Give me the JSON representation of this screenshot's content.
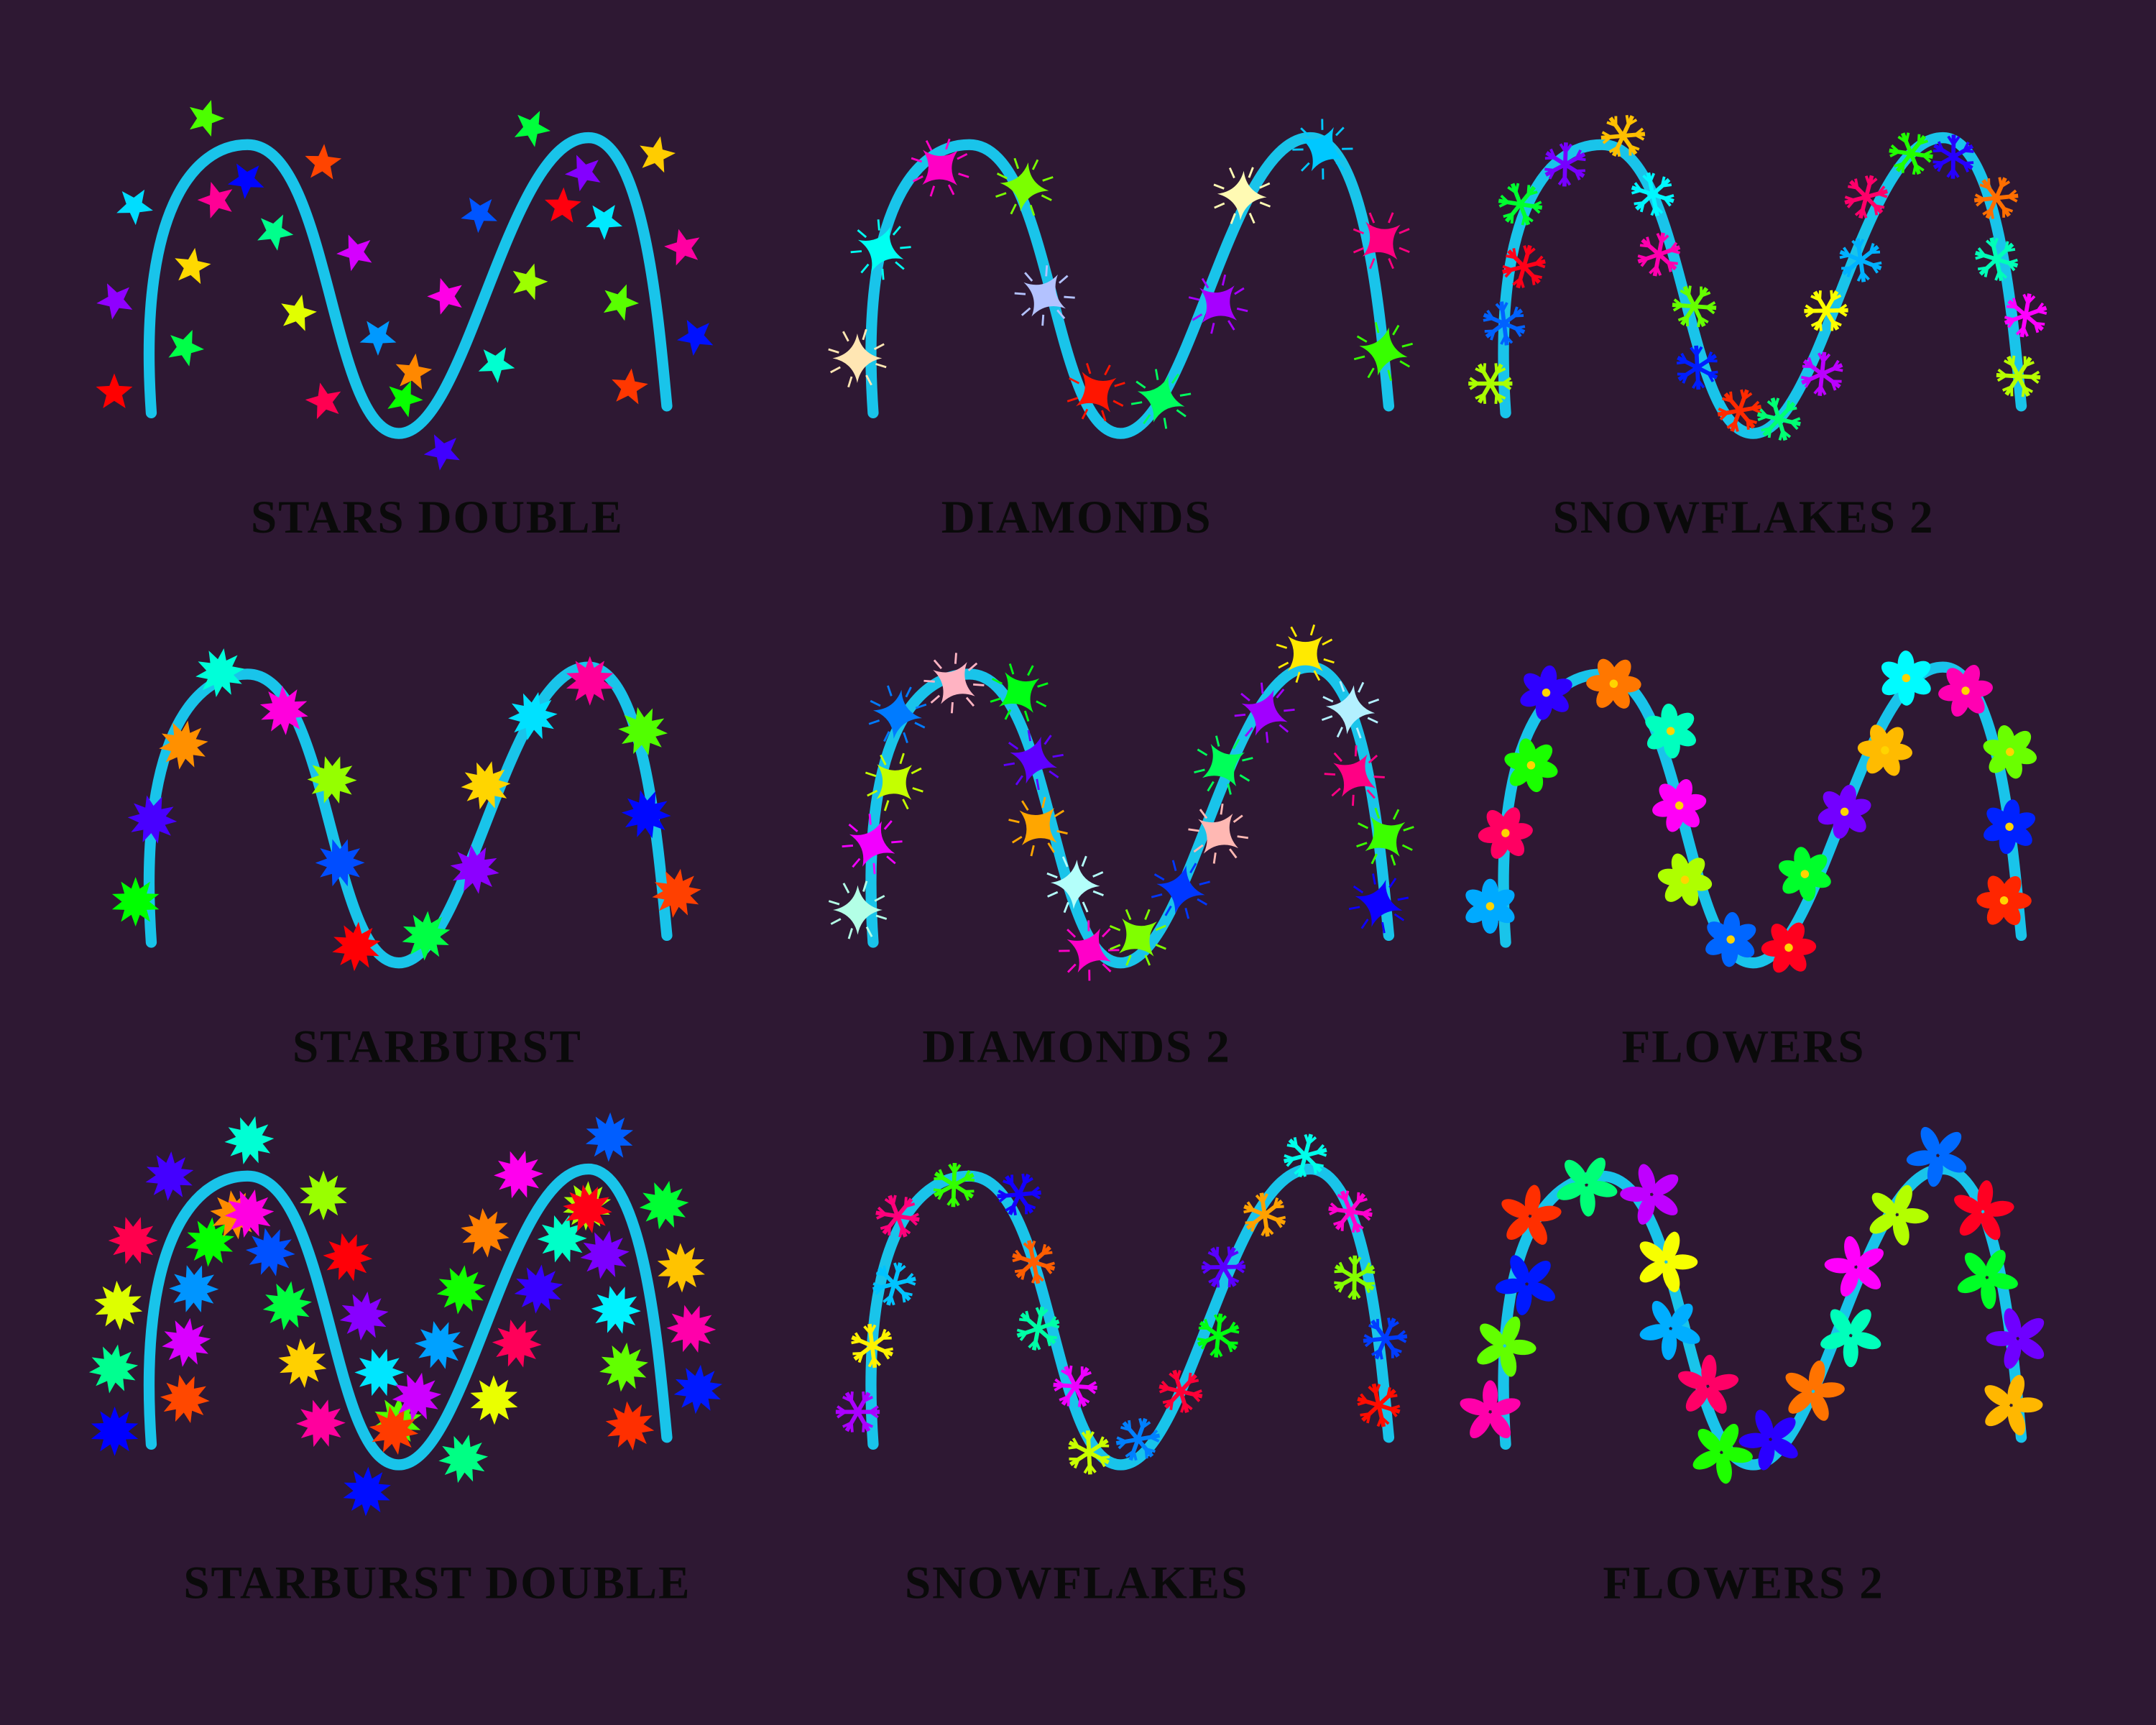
{
  "panels": [
    {
      "label": "STARS DOUBLE"
    },
    {
      "label": "DIAMONDS"
    },
    {
      "label": "SNOWFLAKES 2"
    },
    {
      "label": "STARBURST"
    },
    {
      "label": "DIAMONDS 2"
    },
    {
      "label": "FLOWERS"
    },
    {
      "label": "STARBURST DOUBLE"
    },
    {
      "label": "SNOWFLAKES"
    },
    {
      "label": "FLOWERS 2"
    }
  ]
}
